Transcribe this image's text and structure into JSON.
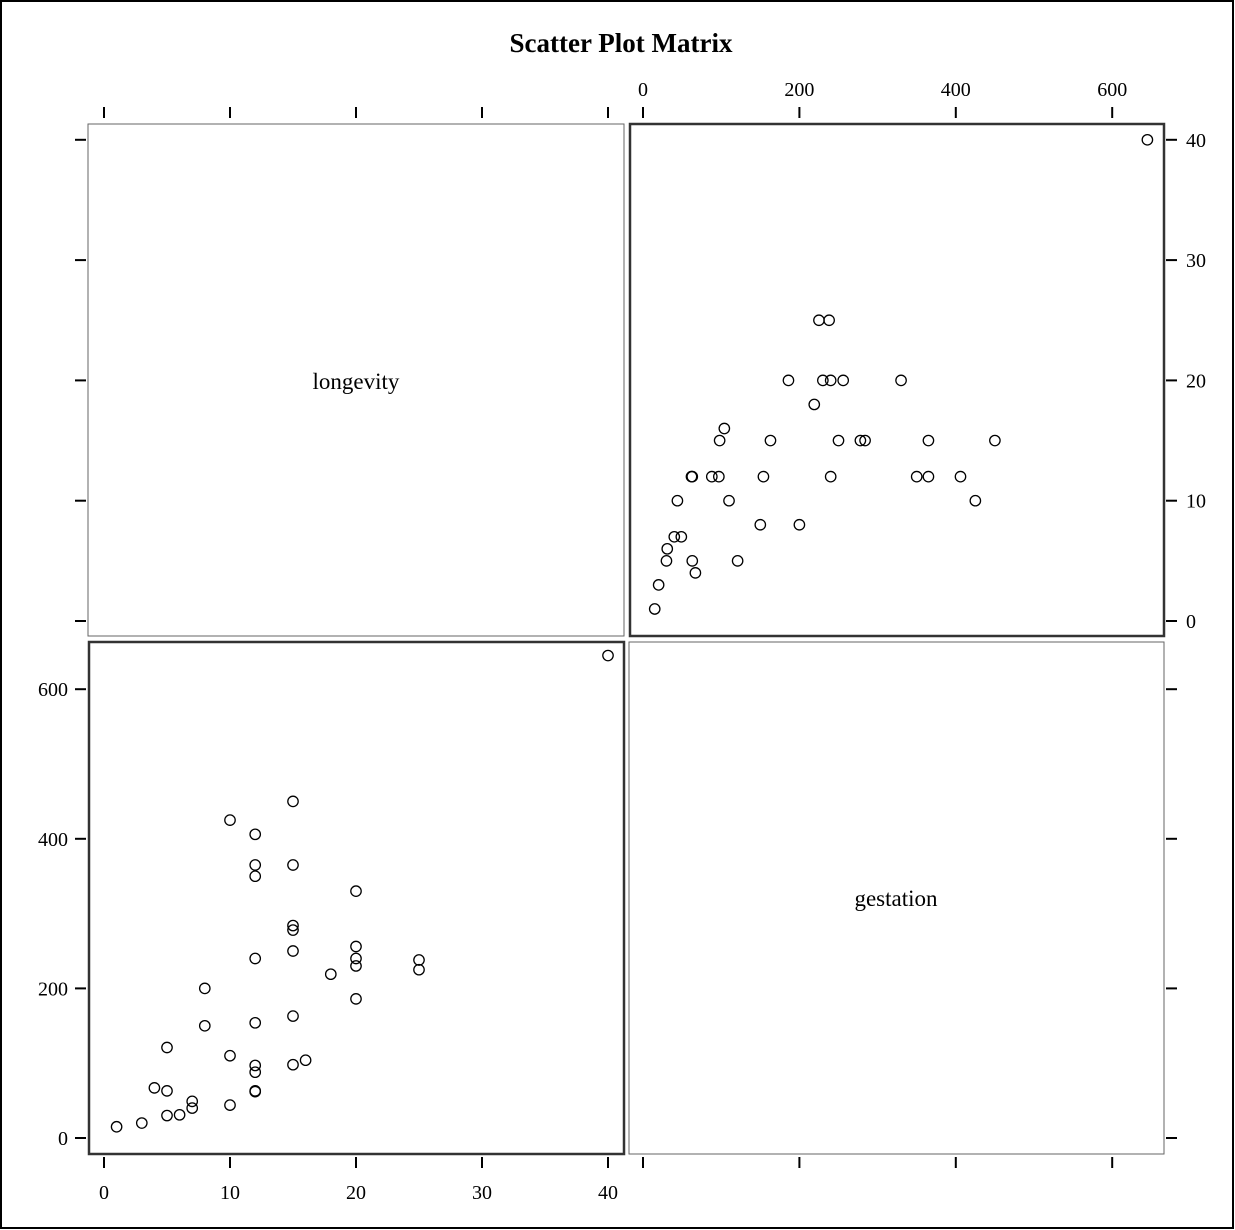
{
  "chart_data": {
    "type": "scatter",
    "title": "Scatter Plot Matrix",
    "variables": [
      "longevity",
      "gestation"
    ],
    "axes": {
      "longevity": {
        "range": [
          -1,
          41
        ],
        "ticks": [
          0,
          10,
          20,
          30,
          40
        ],
        "tick_labels": [
          "0",
          "10",
          "20",
          "30",
          "40"
        ]
      },
      "gestation": {
        "range": [
          -20,
          655
        ],
        "ticks": [
          0,
          200,
          400,
          600
        ],
        "tick_labels": [
          "0",
          "200",
          "400",
          "600"
        ]
      }
    },
    "grid": false,
    "legend": "none",
    "points": [
      {
        "longevity": 1,
        "gestation": 15
      },
      {
        "longevity": 3,
        "gestation": 20
      },
      {
        "longevity": 4,
        "gestation": 67
      },
      {
        "longevity": 5,
        "gestation": 30
      },
      {
        "longevity": 5,
        "gestation": 63
      },
      {
        "longevity": 5,
        "gestation": 121
      },
      {
        "longevity": 6,
        "gestation": 31
      },
      {
        "longevity": 7,
        "gestation": 40
      },
      {
        "longevity": 7,
        "gestation": 49
      },
      {
        "longevity": 8,
        "gestation": 150
      },
      {
        "longevity": 8,
        "gestation": 200
      },
      {
        "longevity": 10,
        "gestation": 44
      },
      {
        "longevity": 10,
        "gestation": 110
      },
      {
        "longevity": 10,
        "gestation": 425
      },
      {
        "longevity": 12,
        "gestation": 62
      },
      {
        "longevity": 12,
        "gestation": 63
      },
      {
        "longevity": 12,
        "gestation": 88
      },
      {
        "longevity": 12,
        "gestation": 97
      },
      {
        "longevity": 12,
        "gestation": 154
      },
      {
        "longevity": 12,
        "gestation": 240
      },
      {
        "longevity": 12,
        "gestation": 350
      },
      {
        "longevity": 12,
        "gestation": 365
      },
      {
        "longevity": 12,
        "gestation": 406
      },
      {
        "longevity": 15,
        "gestation": 98
      },
      {
        "longevity": 15,
        "gestation": 163
      },
      {
        "longevity": 15,
        "gestation": 250
      },
      {
        "longevity": 15,
        "gestation": 278
      },
      {
        "longevity": 15,
        "gestation": 284
      },
      {
        "longevity": 15,
        "gestation": 365
      },
      {
        "longevity": 15,
        "gestation": 450
      },
      {
        "longevity": 16,
        "gestation": 104
      },
      {
        "longevity": 18,
        "gestation": 219
      },
      {
        "longevity": 20,
        "gestation": 186
      },
      {
        "longevity": 20,
        "gestation": 230
      },
      {
        "longevity": 20,
        "gestation": 240
      },
      {
        "longevity": 20,
        "gestation": 256
      },
      {
        "longevity": 20,
        "gestation": 330
      },
      {
        "longevity": 25,
        "gestation": 225
      },
      {
        "longevity": 25,
        "gestation": 238
      },
      {
        "longevity": 40,
        "gestation": 645
      }
    ]
  }
}
